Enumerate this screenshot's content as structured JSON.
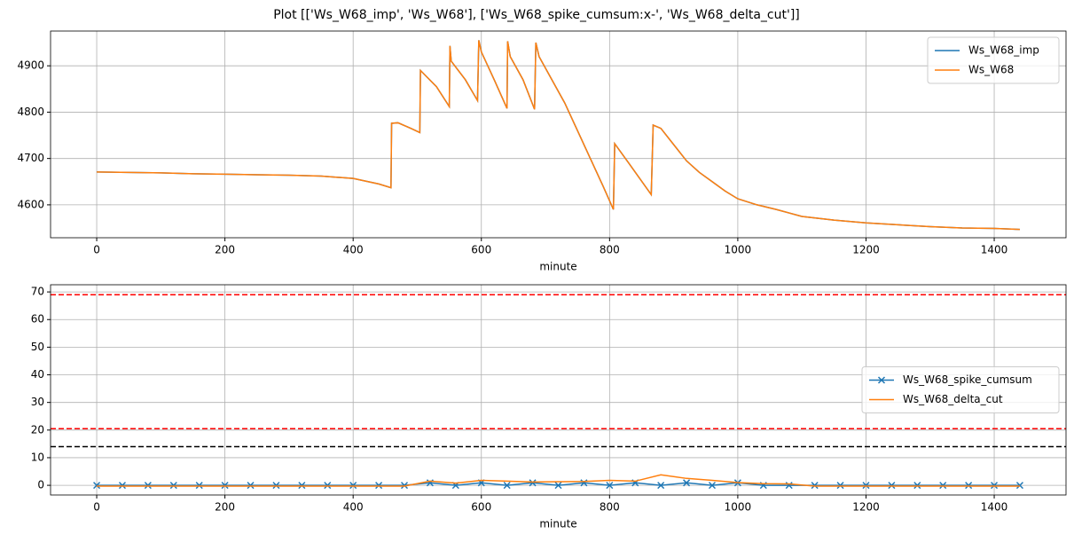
{
  "title": "Plot [['Ws_W68_imp', 'Ws_W68'], ['Ws_W68_spike_cumsum:x-', 'Ws_W68_delta_cut']]",
  "chart_data": [
    {
      "type": "line",
      "xlabel": "minute",
      "x": [
        0,
        50,
        100,
        150,
        200,
        250,
        300,
        350,
        400,
        440,
        459,
        460,
        470,
        490,
        504,
        505,
        530,
        550,
        551,
        553,
        575,
        594,
        596,
        600,
        620,
        640,
        641,
        645,
        665,
        683,
        685,
        690,
        710,
        730,
        750,
        770,
        790,
        806,
        808,
        830,
        865,
        868,
        880,
        900,
        920,
        940,
        960,
        980,
        1000,
        1030,
        1060,
        1100,
        1150,
        1200,
        1250,
        1300,
        1350,
        1400,
        1440
      ],
      "series": [
        {
          "name": "Ws_W68_imp",
          "color": "#1f77b4",
          "values": [
            4671,
            4670,
            4669,
            4667,
            4666,
            4665,
            4664,
            4662,
            4657,
            4645,
            4637,
            4776,
            4777,
            4765,
            4756,
            4890,
            4855,
            4812,
            4943,
            4910,
            4870,
            4825,
            4955,
            4930,
            4870,
            4808,
            4953,
            4920,
            4870,
            4806,
            4950,
            4920,
            4870,
            4820,
            4760,
            4700,
            4640,
            4590,
            4732,
            4690,
            4622,
            4772,
            4765,
            4730,
            4695,
            4670,
            4650,
            4630,
            4613,
            4600,
            4590,
            4575,
            4567,
            4561,
            4557,
            4553,
            4550,
            4549,
            4547
          ]
        },
        {
          "name": "Ws_W68",
          "color": "#ff7f0e",
          "values": [
            4671,
            4670,
            4669,
            4667,
            4666,
            4665,
            4664,
            4662,
            4657,
            4645,
            4637,
            4776,
            4777,
            4765,
            4756,
            4890,
            4855,
            4812,
            4943,
            4910,
            4870,
            4825,
            4955,
            4930,
            4870,
            4808,
            4953,
            4920,
            4870,
            4806,
            4950,
            4920,
            4870,
            4820,
            4760,
            4700,
            4640,
            4590,
            4732,
            4690,
            4622,
            4772,
            4765,
            4730,
            4695,
            4670,
            4650,
            4630,
            4613,
            4600,
            4590,
            4575,
            4567,
            4561,
            4557,
            4553,
            4550,
            4549,
            4547
          ]
        }
      ],
      "xlim": [
        -72,
        1512
      ],
      "xticks": [
        0,
        200,
        400,
        600,
        800,
        1000,
        1200,
        1400
      ],
      "ylim": [
        4529,
        4975
      ],
      "yticks": [
        4600,
        4700,
        4800,
        4900
      ],
      "grid": true,
      "legend": "upper right"
    },
    {
      "type": "line",
      "xlabel": "minute",
      "x": [
        0,
        40,
        80,
        120,
        160,
        200,
        240,
        280,
        320,
        360,
        400,
        440,
        480,
        520,
        560,
        600,
        640,
        680,
        720,
        760,
        800,
        840,
        880,
        920,
        960,
        1000,
        1040,
        1080,
        1120,
        1160,
        1200,
        1240,
        1280,
        1320,
        1360,
        1400,
        1440
      ],
      "series": [
        {
          "name": "Ws_W68_spike_cumsum",
          "color": "#1f77b4",
          "marker": "x",
          "values": [
            0,
            0,
            0,
            0,
            0,
            0,
            0,
            0,
            0,
            0,
            0,
            0,
            0,
            0.9,
            0,
            0.9,
            0,
            0.9,
            0,
            0.9,
            0,
            0.9,
            0,
            0.9,
            0,
            0.9,
            0,
            0,
            0,
            0,
            0,
            0,
            0,
            0,
            0,
            0,
            0
          ]
        },
        {
          "name": "Ws_W68_delta_cut",
          "color": "#ff7f0e",
          "values": [
            -0.3,
            -0.3,
            -0.3,
            -0.3,
            -0.3,
            -0.3,
            -0.3,
            -0.3,
            -0.3,
            -0.3,
            -0.3,
            -0.3,
            -0.3,
            1.5,
            0.8,
            1.8,
            1.5,
            1.2,
            1.3,
            1.4,
            1.8,
            1.5,
            3.8,
            2.5,
            1.8,
            1.0,
            0.6,
            0.5,
            -0.3,
            -0.3,
            -0.3,
            -0.3,
            -0.3,
            -0.3,
            -0.3,
            -0.3,
            -0.3
          ]
        }
      ],
      "hlines": [
        {
          "value": 69,
          "color": "red"
        },
        {
          "value": 20.5,
          "color": "red"
        },
        {
          "value": 14,
          "color": "black"
        }
      ],
      "xlim": [
        -72,
        1512
      ],
      "xticks": [
        0,
        200,
        400,
        600,
        800,
        1000,
        1200,
        1400
      ],
      "ylim": [
        -3.5,
        72.6
      ],
      "yticks": [
        0,
        10,
        20,
        30,
        40,
        50,
        60,
        70
      ],
      "grid": true,
      "legend": "center right"
    }
  ]
}
